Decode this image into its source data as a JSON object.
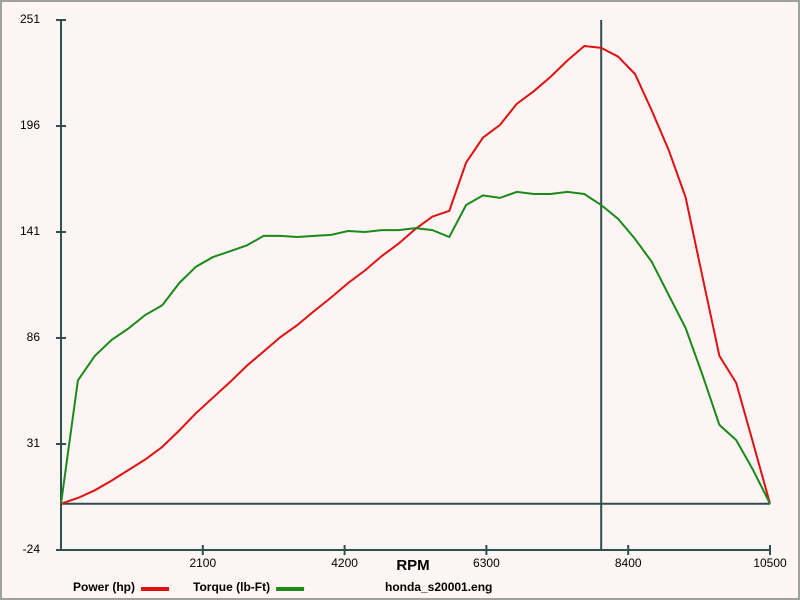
{
  "chart_data": {
    "type": "line",
    "x_label": "RPM",
    "file_name": "honda_s20001.eng",
    "x": [
      0,
      250,
      500,
      750,
      1000,
      1250,
      1500,
      1750,
      2000,
      2250,
      2500,
      2750,
      3000,
      3250,
      3500,
      3750,
      4000,
      4250,
      4500,
      4750,
      5000,
      5250,
      5500,
      5750,
      6000,
      6250,
      6500,
      6750,
      7000,
      7250,
      7500,
      7750,
      8000,
      8250,
      8500,
      8750,
      9000,
      9250,
      9500,
      9750,
      10000,
      10250,
      10500
    ],
    "series": [
      {
        "name": "Power (hp)",
        "color": "#e01010",
        "values": [
          0,
          3,
          7,
          12,
          17.5,
          23,
          29.5,
          38,
          47,
          55,
          63,
          71.5,
          79,
          86.5,
          92.7,
          100,
          107,
          114.5,
          121,
          128.5,
          135,
          142.6,
          149,
          152,
          177,
          190,
          196.5,
          207.5,
          214,
          221.5,
          230,
          237.5,
          236.5,
          232,
          223,
          204,
          183.5,
          159,
          117.7,
          76.7,
          62.7,
          31.5,
          0
        ]
      },
      {
        "name": "Torque (lb-Ft)",
        "color": "#1a8a1a",
        "values": [
          0,
          64,
          76.7,
          85,
          91,
          98,
          103,
          114.5,
          123,
          128,
          131,
          134,
          139,
          139,
          138.4,
          139,
          139.5,
          141.5,
          141,
          142,
          142,
          143,
          142,
          138.4,
          155,
          160,
          158.7,
          161.8,
          160.7,
          160.7,
          161.8,
          160.7,
          155,
          147.8,
          137.4,
          125.5,
          108.3,
          91.2,
          66.8,
          40.9,
          33,
          17.5,
          0
        ]
      }
    ],
    "xlim": [
      0,
      10500
    ],
    "xticks": [
      2100,
      4200,
      6300,
      8400,
      10500
    ],
    "ylim": [
      -24,
      251
    ],
    "yticks": [
      -24,
      31,
      86,
      141,
      196,
      251
    ],
    "cursor_x": 8000
  }
}
